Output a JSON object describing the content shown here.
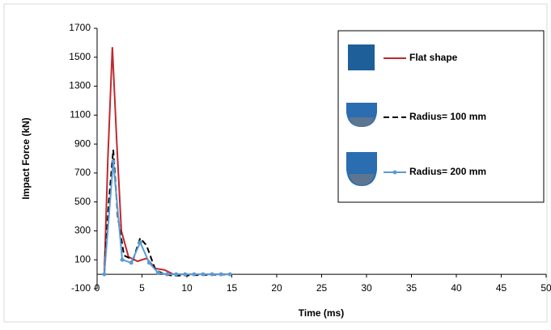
{
  "chart_data": {
    "type": "line",
    "x_label": "Time (ms)",
    "y_label": "Impact Force (kN)",
    "xlim": [
      0,
      50
    ],
    "ylim": [
      -100,
      1700
    ],
    "xticks": [
      0,
      5,
      10,
      15,
      20,
      25,
      30,
      35,
      40,
      45,
      50
    ],
    "yticks": [
      -100,
      100,
      300,
      500,
      700,
      900,
      1100,
      1300,
      1500,
      1700
    ],
    "legend": "upper right",
    "series": [
      {
        "name": "Flat shape",
        "color": "#c0282d",
        "line_style": "solid",
        "marker": false,
        "x": [
          0.8,
          1.2,
          1.7,
          2.2,
          2.7,
          3.5,
          4.5,
          5.5,
          6.5,
          7.5,
          8.5,
          15
        ],
        "values": [
          0,
          800,
          1570,
          900,
          300,
          120,
          90,
          110,
          40,
          30,
          0,
          0
        ]
      },
      {
        "name": "Radius= 100 mm",
        "color": "#000000",
        "line_style": "dashed",
        "marker": false,
        "x": [
          0.8,
          1.3,
          1.8,
          2.3,
          3,
          4,
          4.8,
          5.5,
          6.5,
          7.5,
          8.5,
          15
        ],
        "values": [
          0,
          500,
          860,
          400,
          130,
          100,
          250,
          200,
          30,
          0,
          -10,
          0
        ]
      },
      {
        "name": "Radius= 200 mm",
        "color": "#5b9bd5",
        "line_style": "solid",
        "marker": true,
        "x": [
          0.8,
          1.8,
          2.8,
          3.8,
          4.8,
          5.8,
          6.8,
          7.8,
          8.8,
          9.8,
          10.8,
          11.8,
          12.8,
          13.8,
          14.8
        ],
        "values": [
          0,
          780,
          100,
          80,
          220,
          80,
          10,
          0,
          0,
          0,
          0,
          0,
          0,
          0,
          0
        ]
      }
    ]
  }
}
